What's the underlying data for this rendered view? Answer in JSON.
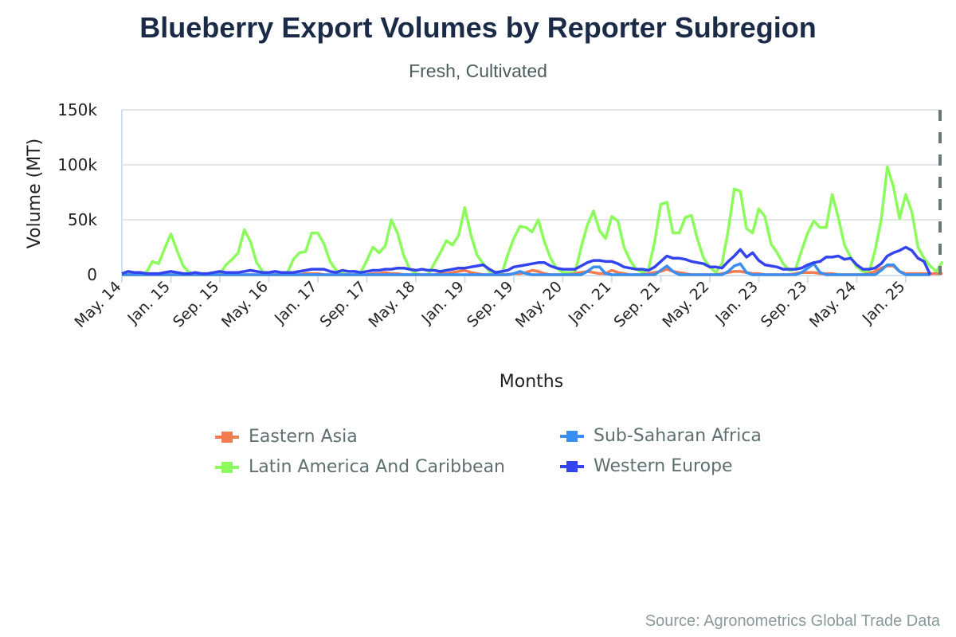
{
  "chart_data": {
    "type": "line",
    "title": "Blueberry Export Volumes by Reporter Subregion",
    "subtitle": "Fresh, Cultivated",
    "xlabel": "Months",
    "ylabel": "Volume (MT)",
    "x_range": [
      "2014-05",
      "2025-07"
    ],
    "x_ticks": [
      "May. 14",
      "Jan. 15",
      "Sep. 15",
      "May. 16",
      "Jan. 17",
      "Sep. 17",
      "May. 18",
      "Jan. 19",
      "Sep. 19",
      "May. 20",
      "Jan. 21",
      "Sep. 21",
      "May. 22",
      "Jan. 23",
      "Sep. 23",
      "May. 24",
      "Jan. 25"
    ],
    "y_ticks": [
      {
        "value": 0,
        "label": "0"
      },
      {
        "value": 50000,
        "label": "50k"
      },
      {
        "value": 100000,
        "label": "100k"
      },
      {
        "value": 150000,
        "label": "150k"
      }
    ],
    "ylim": [
      0,
      150000
    ],
    "grid": "horizontal",
    "legend_position": "bottom",
    "source": "Source: Agronometrics Global Trade Data",
    "series": [
      {
        "name": "Eastern Asia",
        "color": "#f47a50",
        "values": [
          0,
          0,
          0,
          0,
          0,
          0,
          0,
          0,
          0,
          0,
          0,
          0,
          0,
          0,
          0,
          0,
          0,
          0,
          0,
          0,
          0,
          0,
          0,
          0,
          0,
          0,
          0,
          0,
          0,
          0,
          1000,
          1000,
          1000,
          0,
          0,
          0,
          0,
          0,
          0,
          0,
          0,
          1000,
          1000,
          2000,
          1000,
          1000,
          0,
          0,
          0,
          0,
          0,
          0,
          1000,
          1000,
          2000,
          3000,
          4000,
          2000,
          1000,
          0,
          0,
          0,
          0,
          0,
          1000,
          1000,
          2000,
          4000,
          3000,
          1000,
          0,
          0,
          0,
          0,
          1000,
          2000,
          3000,
          2000,
          1000,
          1000,
          4000,
          2000,
          1000,
          0,
          0,
          0,
          1000,
          2000,
          3000,
          5000,
          3000,
          2000,
          1000,
          0,
          0,
          0,
          0,
          0,
          1000,
          2000,
          3000,
          3000,
          2000,
          1000,
          1000,
          0,
          0,
          0,
          0,
          0,
          1000,
          2000,
          2000,
          2000,
          1000,
          1000,
          1000,
          0,
          0,
          0,
          0,
          0,
          1000,
          3000,
          6000,
          8000,
          8000,
          3000,
          1000,
          1000,
          1000,
          1000,
          1000,
          1000,
          1000
        ]
      },
      {
        "name": "Sub-Saharan Africa",
        "color": "#3a8ef0",
        "values": [
          0,
          0,
          0,
          0,
          0,
          0,
          0,
          0,
          0,
          0,
          0,
          0,
          0,
          0,
          0,
          0,
          0,
          0,
          0,
          0,
          0,
          0,
          0,
          0,
          0,
          0,
          0,
          0,
          0,
          0,
          0,
          0,
          0,
          0,
          0,
          0,
          0,
          0,
          0,
          0,
          0,
          0,
          0,
          0,
          0,
          0,
          0,
          0,
          0,
          0,
          0,
          0,
          0,
          0,
          0,
          0,
          0,
          0,
          0,
          0,
          0,
          0,
          0,
          0,
          1000,
          3000,
          1000,
          0,
          0,
          0,
          0,
          0,
          0,
          0,
          0,
          0,
          3000,
          7000,
          7000,
          1000,
          0,
          0,
          0,
          0,
          0,
          0,
          0,
          0,
          4000,
          8000,
          3000,
          0,
          0,
          0,
          0,
          0,
          0,
          0,
          0,
          3000,
          8000,
          10000,
          2000,
          0,
          0,
          0,
          0,
          0,
          0,
          0,
          0,
          2000,
          6000,
          10000,
          2000,
          0,
          0,
          0,
          0,
          0,
          0,
          0,
          0,
          0,
          4000,
          9000,
          9000,
          3000,
          0,
          0,
          0,
          0,
          0,
          null,
          null
        ]
      },
      {
        "name": "Latin America And Caribbean",
        "color": "#8cfb5c",
        "values": [
          0,
          0,
          0,
          1000,
          2000,
          12000,
          10000,
          24000,
          37000,
          22000,
          8000,
          2000,
          0,
          0,
          0,
          0,
          1000,
          9000,
          14000,
          20000,
          41000,
          30000,
          11000,
          3000,
          0,
          0,
          0,
          1000,
          14000,
          20000,
          21000,
          38000,
          38000,
          28000,
          12000,
          4000,
          1000,
          0,
          0,
          2000,
          13000,
          25000,
          20000,
          26000,
          50000,
          38000,
          18000,
          5000,
          1000,
          0,
          0,
          10000,
          20000,
          31000,
          27000,
          36000,
          61000,
          36000,
          18000,
          10000,
          3000,
          1000,
          0,
          18000,
          33000,
          44000,
          43000,
          39000,
          50000,
          30000,
          15000,
          6000,
          2000,
          2000,
          2000,
          25000,
          45000,
          58000,
          40000,
          33000,
          53000,
          49000,
          25000,
          13000,
          5000,
          2000,
          5000,
          30000,
          64000,
          66000,
          38000,
          38000,
          52000,
          54000,
          32000,
          15000,
          7000,
          2000,
          10000,
          40000,
          78000,
          76000,
          42000,
          38000,
          60000,
          53000,
          28000,
          20000,
          10000,
          4000,
          5000,
          22000,
          38000,
          49000,
          43000,
          43000,
          73000,
          52000,
          27000,
          16000,
          7000,
          3000,
          2000,
          22000,
          50000,
          98000,
          80000,
          51000,
          73000,
          57000,
          25000,
          15000,
          8000,
          3000,
          12000
        ]
      },
      {
        "name": "Western Europe",
        "color": "#3344ee",
        "values": [
          1000,
          3000,
          2000,
          2000,
          1000,
          1000,
          1000,
          2000,
          3000,
          2000,
          1000,
          1000,
          2000,
          1000,
          1000,
          2000,
          3000,
          2000,
          2000,
          2000,
          3000,
          4000,
          3000,
          2000,
          2000,
          3000,
          2000,
          2000,
          2000,
          3000,
          4000,
          5000,
          5000,
          5000,
          3000,
          2000,
          4000,
          3000,
          3000,
          2000,
          3000,
          4000,
          4000,
          5000,
          5000,
          6000,
          6000,
          5000,
          4000,
          5000,
          4000,
          4000,
          3000,
          4000,
          5000,
          6000,
          6000,
          7000,
          8000,
          9000,
          5000,
          2000,
          3000,
          4000,
          7000,
          8000,
          9000,
          10000,
          11000,
          11000,
          8000,
          6000,
          5000,
          5000,
          5000,
          8000,
          11000,
          13000,
          13000,
          12000,
          12000,
          10000,
          7000,
          6000,
          5000,
          5000,
          4000,
          7000,
          12000,
          17000,
          15000,
          15000,
          14000,
          12000,
          11000,
          10000,
          7000,
          7000,
          6000,
          12000,
          17000,
          23000,
          16000,
          20000,
          13000,
          9000,
          8000,
          7000,
          5000,
          5000,
          5000,
          6000,
          9000,
          11000,
          12000,
          16000,
          16000,
          17000,
          14000,
          15000,
          9000,
          5000,
          5000,
          6000,
          10000,
          17000,
          20000,
          22000,
          25000,
          22000,
          15000,
          12000,
          0,
          null,
          null
        ]
      }
    ]
  }
}
